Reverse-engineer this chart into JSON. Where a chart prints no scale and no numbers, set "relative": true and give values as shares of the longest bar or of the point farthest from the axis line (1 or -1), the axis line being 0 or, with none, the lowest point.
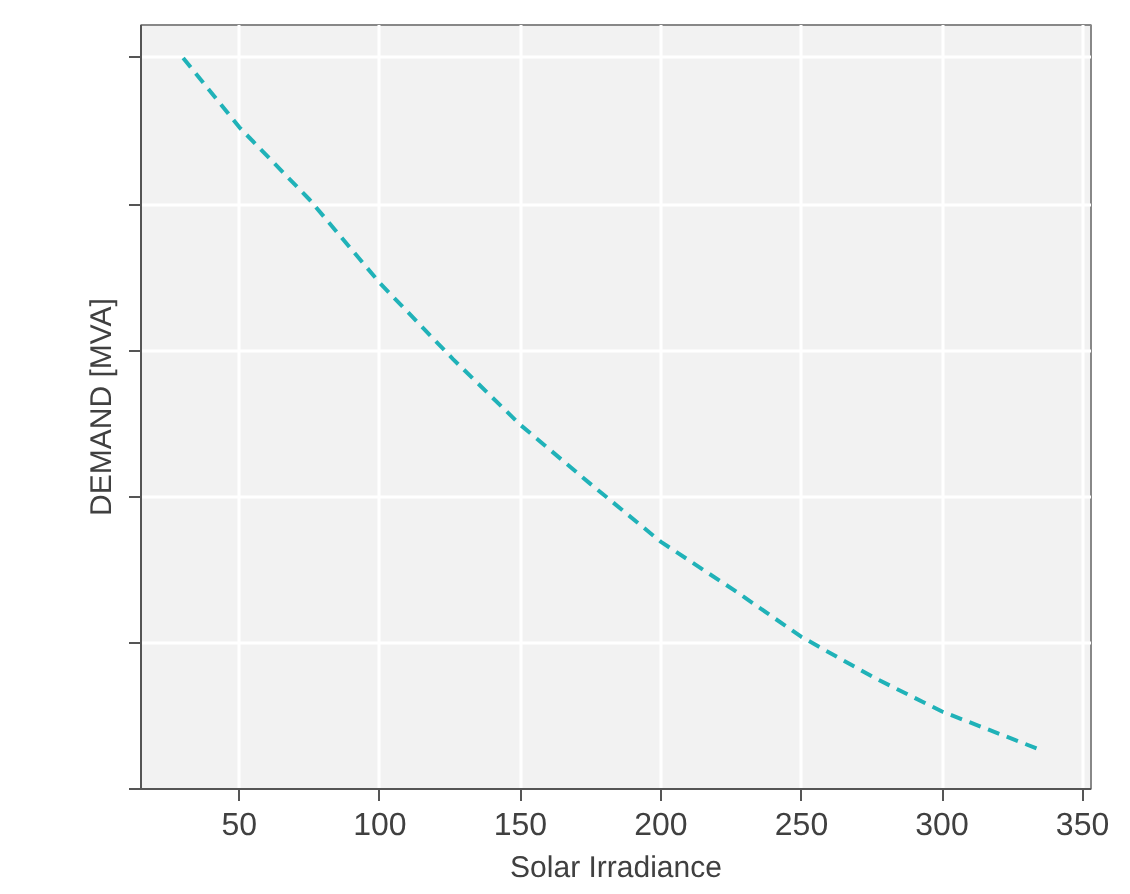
{
  "chart_data": {
    "type": "line",
    "xlabel": "Solar Irradiance",
    "ylabel": "DEMAND [MVA]",
    "relative": true,
    "x": [
      30,
      50,
      75,
      100,
      126,
      150,
      175,
      200,
      226,
      250,
      276,
      300,
      336
    ],
    "series": [
      {
        "color": "#20b2b8",
        "values": [
          1,
          0.905,
          0.806,
          0.692,
          0.588,
          0.498,
          0.417,
          0.338,
          0.272,
          0.208,
          0.152,
          0.106,
          0.052
        ]
      }
    ],
    "xlim": [
      15,
      353
    ],
    "xticks": [
      50,
      100,
      150,
      200,
      250,
      300,
      350
    ],
    "grid": true,
    "line_style": "dashed",
    "tick_labels": "x"
  }
}
